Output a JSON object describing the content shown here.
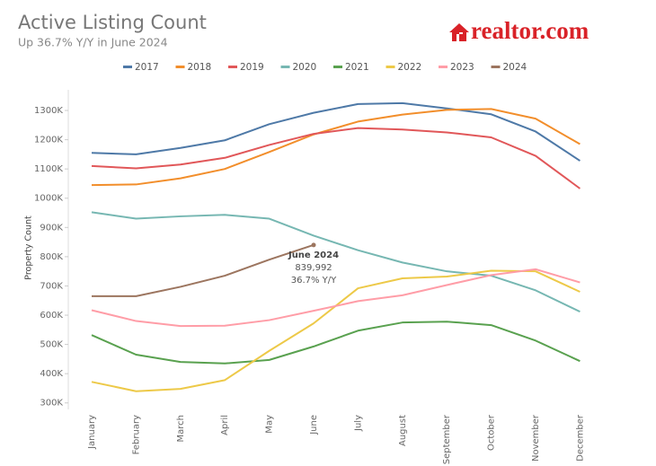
{
  "chart_data": {
    "type": "line",
    "title": "Active Listing Count",
    "subtitle": "Up 36.7% Y/Y in June 2024",
    "logo": "realtor.com",
    "y_axis_label": "Property Count",
    "legend": "top",
    "grid": false,
    "categories": [
      "January",
      "February",
      "March",
      "April",
      "May",
      "June",
      "July",
      "August",
      "September",
      "October",
      "November",
      "December"
    ],
    "ylim": [
      290000,
      1340000
    ],
    "yticks": [
      {
        "value": 300000,
        "label": "300K"
      },
      {
        "value": 400000,
        "label": "400K"
      },
      {
        "value": 500000,
        "label": "500K"
      },
      {
        "value": 600000,
        "label": "600K"
      },
      {
        "value": 700000,
        "label": "700K"
      },
      {
        "value": 800000,
        "label": "800K"
      },
      {
        "value": 900000,
        "label": "900K"
      },
      {
        "value": 1000000,
        "label": "1000K"
      },
      {
        "value": 1100000,
        "label": "1100K"
      },
      {
        "value": 1200000,
        "label": "1200K"
      },
      {
        "value": 1300000,
        "label": "1300K"
      }
    ],
    "series": [
      {
        "name": "2017",
        "color": "#4e79a7",
        "values": [
          1155000,
          1150000,
          1172000,
          1198000,
          1253000,
          1292000,
          1322000,
          1325000,
          1307000,
          1287000,
          1228000,
          1128000
        ]
      },
      {
        "name": "2018",
        "color": "#f28e2b",
        "values": [
          1045000,
          1047000,
          1068000,
          1100000,
          1158000,
          1218000,
          1262000,
          1286000,
          1302000,
          1305000,
          1272000,
          1185000
        ]
      },
      {
        "name": "2019",
        "color": "#e15759",
        "values": [
          1110000,
          1102000,
          1115000,
          1138000,
          1182000,
          1220000,
          1240000,
          1235000,
          1225000,
          1208000,
          1145000,
          1033000
        ]
      },
      {
        "name": "2020",
        "color": "#76b7b2",
        "values": [
          952000,
          930000,
          938000,
          943000,
          930000,
          872000,
          822000,
          780000,
          750000,
          735000,
          685000,
          612000
        ]
      },
      {
        "name": "2021",
        "color": "#59a14f",
        "values": [
          532000,
          465000,
          440000,
          435000,
          447000,
          493000,
          547000,
          575000,
          578000,
          566000,
          513000,
          443000
        ]
      },
      {
        "name": "2022",
        "color": "#edc948",
        "values": [
          372000,
          340000,
          348000,
          378000,
          478000,
          572000,
          692000,
          726000,
          732000,
          752000,
          750000,
          680000
        ]
      },
      {
        "name": "2023",
        "color": "#ff9da7",
        "values": [
          617000,
          580000,
          563000,
          564000,
          583000,
          615000,
          648000,
          668000,
          703000,
          737000,
          757000,
          712000
        ]
      },
      {
        "name": "2024",
        "color": "#9c755f",
        "values": [
          665000,
          665000,
          697000,
          735000,
          790000,
          839992,
          null,
          null,
          null,
          null,
          null,
          null
        ]
      }
    ],
    "annotations": [
      "June 2024",
      "839,992",
      "36.7% Y/Y"
    ]
  }
}
